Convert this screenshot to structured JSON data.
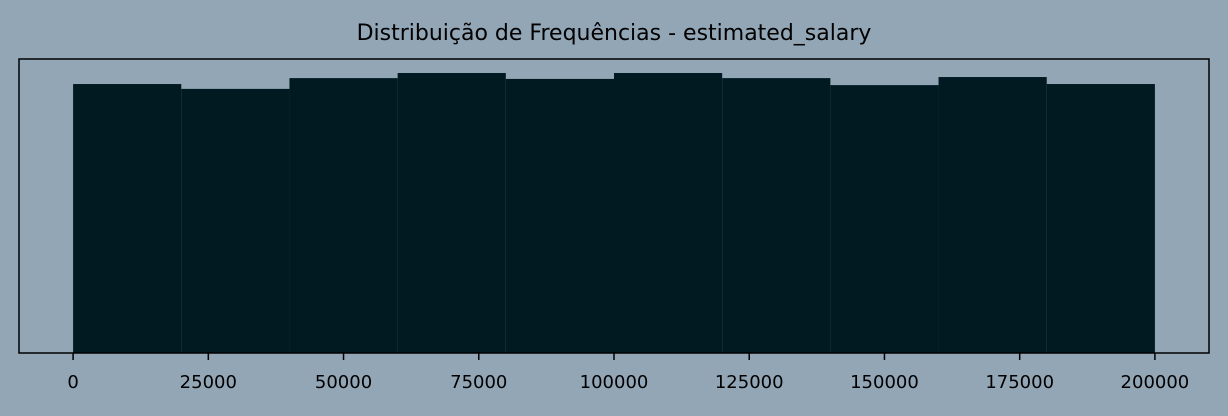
{
  "chart_data": {
    "type": "histogram",
    "title": "Distribuição de Frequências - estimated_salary",
    "bins": [
      0,
      20000,
      40000,
      60000,
      80000,
      100000,
      120000,
      140000,
      160000,
      180000,
      200000
    ],
    "counts": [
      999,
      981,
      1021,
      1040,
      1018,
      1040,
      1021,
      995,
      1025,
      999
    ],
    "color": "#011921",
    "xlim": [
      -10000,
      210000
    ],
    "xticks": [
      0,
      25000,
      50000,
      75000,
      100000,
      125000,
      150000,
      175000,
      200000
    ],
    "ylim": [
      0,
      1092
    ]
  }
}
